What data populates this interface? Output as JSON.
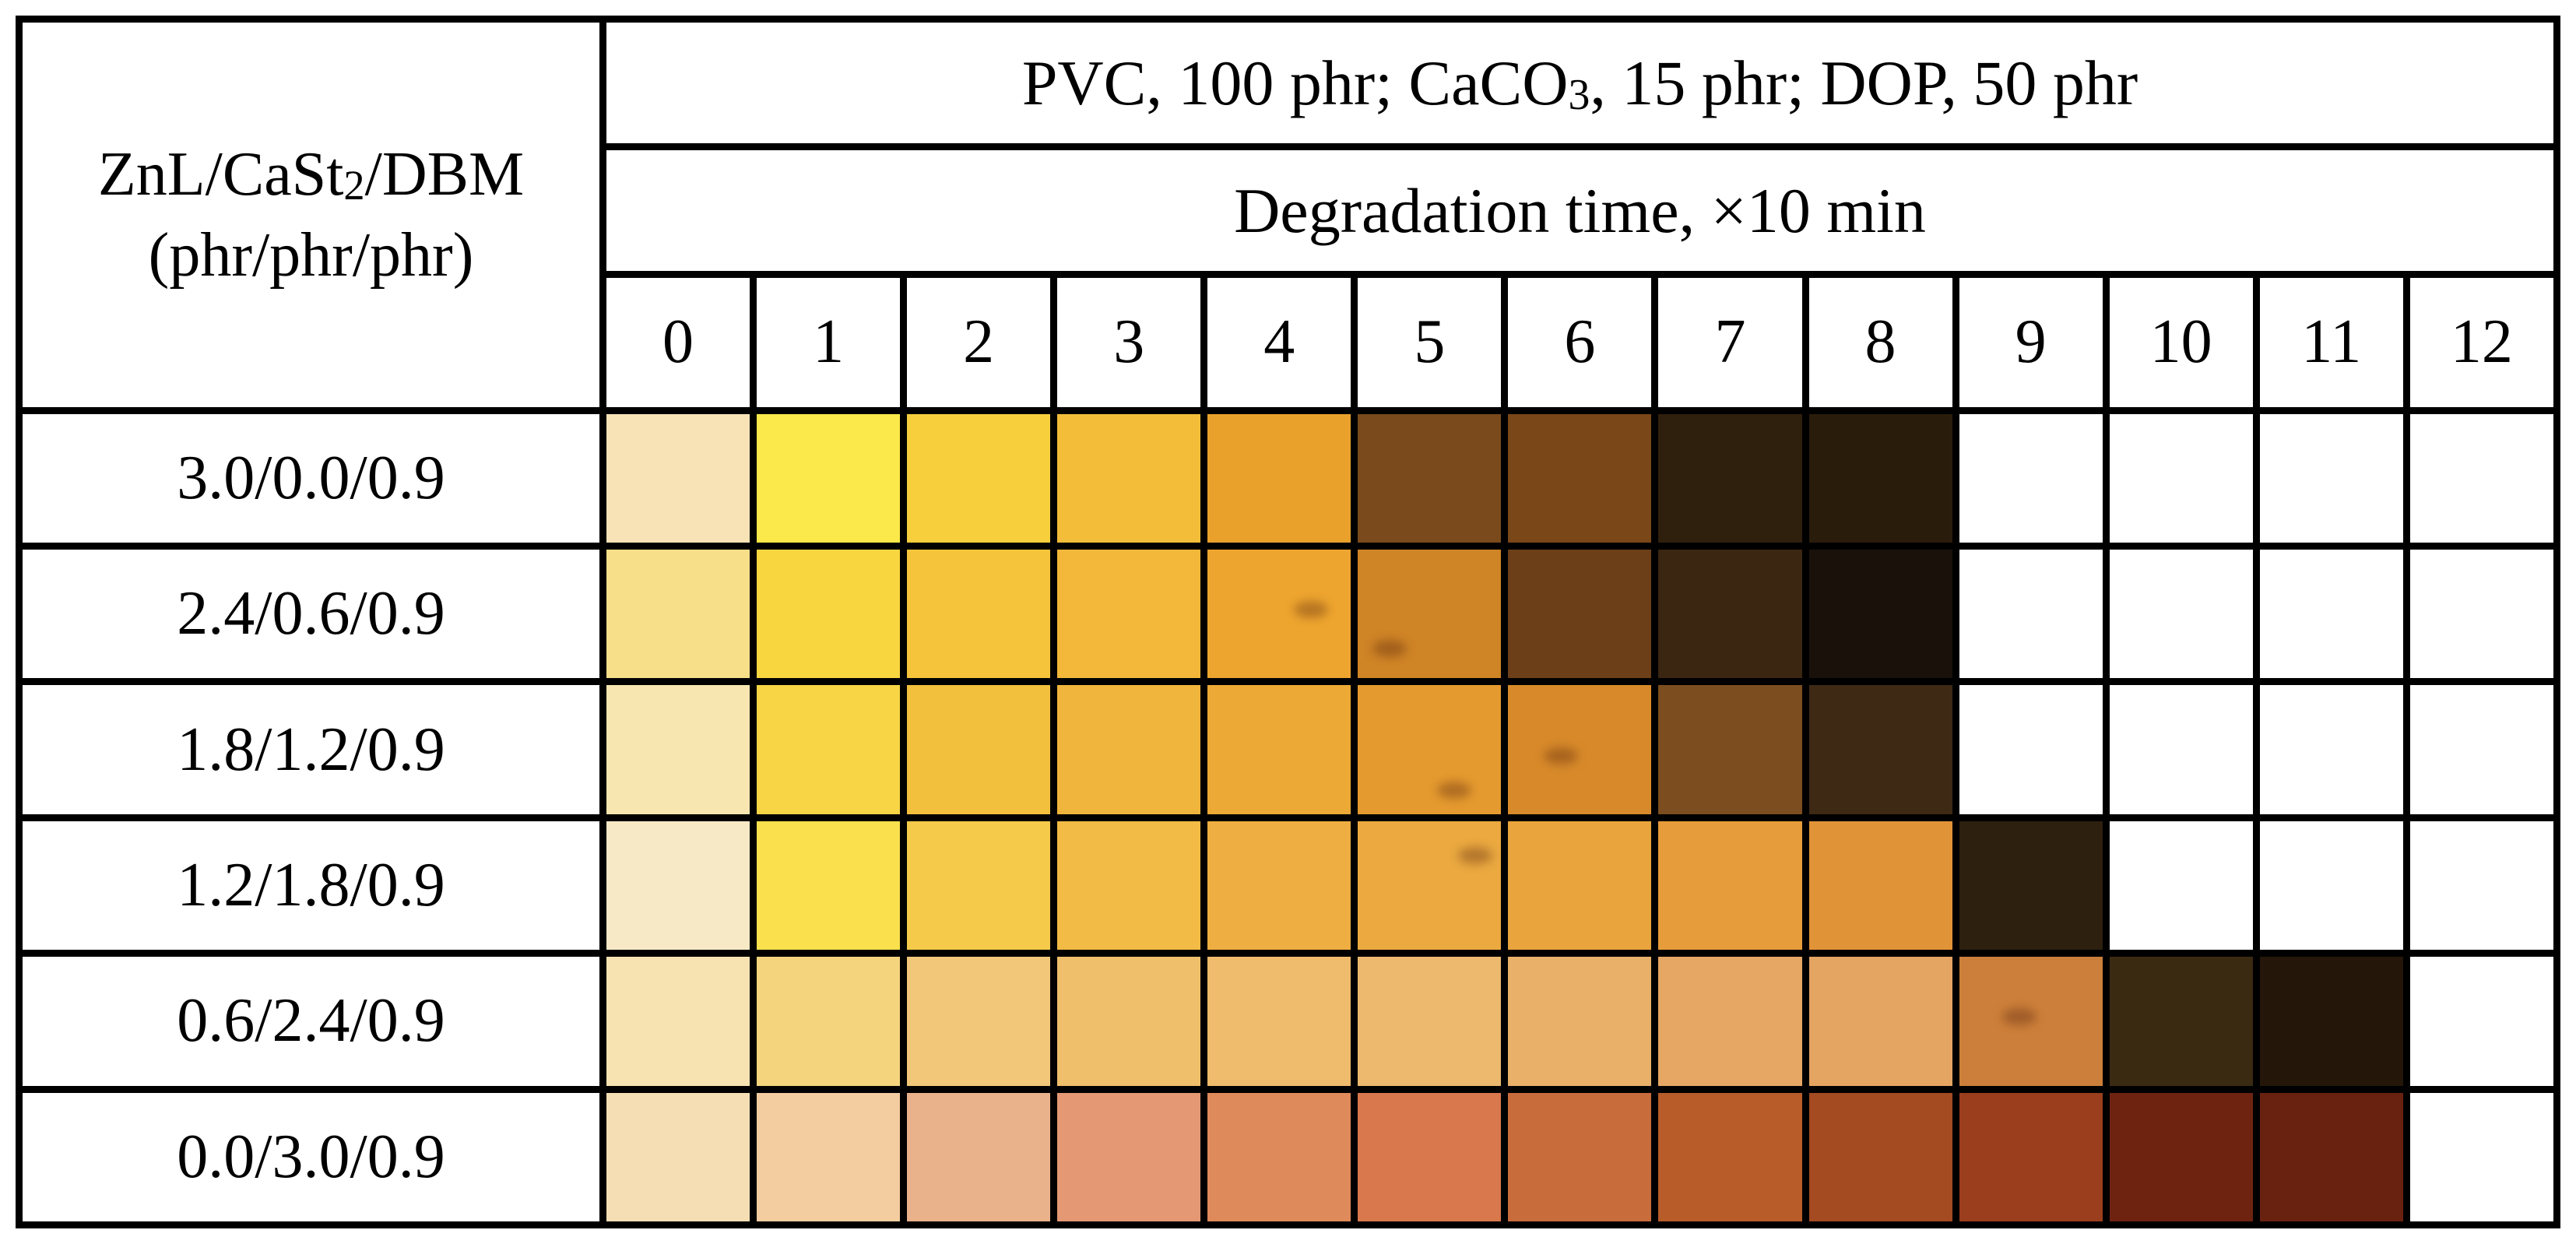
{
  "header": {
    "left_line1_pre": "ZnL/CaSt",
    "left_line1_sub": "2",
    "left_line1_post": "/DBM",
    "left_line2": "(phr/phr/phr)",
    "title_pre": "PVC, 100 phr; CaCO",
    "title_sub": "3",
    "title_post": ", 15 phr; DOP, 50 phr",
    "subtitle": "Degradation time, ×10 min"
  },
  "time_labels": [
    "0",
    "1",
    "2",
    "3",
    "4",
    "5",
    "6",
    "7",
    "8",
    "9",
    "10",
    "11",
    "12"
  ],
  "rows": [
    {
      "label": "3.0/0.0/0.9",
      "swatches": [
        "#f7e3b6",
        "#fbe84a",
        "#f7cf3d",
        "#f3bd3a",
        "#e9a12c",
        "#7a4a1c",
        "#7a4718",
        "#2f1f0d",
        "#2a1c0b",
        "#ffffff",
        "#ffffff",
        "#ffffff",
        "#ffffff"
      ]
    },
    {
      "label": "2.4/0.6/0.9",
      "swatches": [
        "#f7df8a",
        "#f8d640",
        "#f6c43a",
        "#f3b73a",
        "#eea52f",
        "#cf8426",
        "#6c3f18",
        "#3a2611",
        "#1a120a",
        "#ffffff",
        "#ffffff",
        "#ffffff",
        "#ffffff"
      ]
    },
    {
      "label": "1.8/1.2/0.9",
      "swatches": [
        "#f7e6b0",
        "#f7d545",
        "#f3c03d",
        "#f0b53c",
        "#eca936",
        "#e59a2f",
        "#d88a2a",
        "#7c4d1e",
        "#3e2914",
        "#ffffff",
        "#ffffff",
        "#ffffff",
        "#ffffff"
      ]
    },
    {
      "label": "1.2/1.8/0.9",
      "swatches": [
        "#f8e9c6",
        "#f9e04c",
        "#f5c94a",
        "#f2bb45",
        "#eeae42",
        "#eba940",
        "#e9a43d",
        "#e69c3a",
        "#e19338",
        "#2d200f",
        "#ffffff",
        "#ffffff",
        "#ffffff"
      ]
    },
    {
      "label": "0.6/2.4/0.9",
      "swatches": [
        "#f7e3b2",
        "#f5d47e",
        "#f2c77a",
        "#f0bf6c",
        "#efbb6c",
        "#ecb96f",
        "#e9b06a",
        "#e6a765",
        "#e4a462",
        "#cc7f3a",
        "#3b2a12",
        "#241709",
        "#ffffff"
      ]
    },
    {
      "label": "0.0/3.0/0.9",
      "swatches": [
        "#f6deb4",
        "#f3cca0",
        "#eab28a",
        "#e49873",
        "#df8a5a",
        "#d9784d",
        "#c96c3c",
        "#b85d2a",
        "#a44b22",
        "#9b3e1d",
        "#6e2311",
        "#6a2210",
        "#ffffff"
      ]
    }
  ]
}
